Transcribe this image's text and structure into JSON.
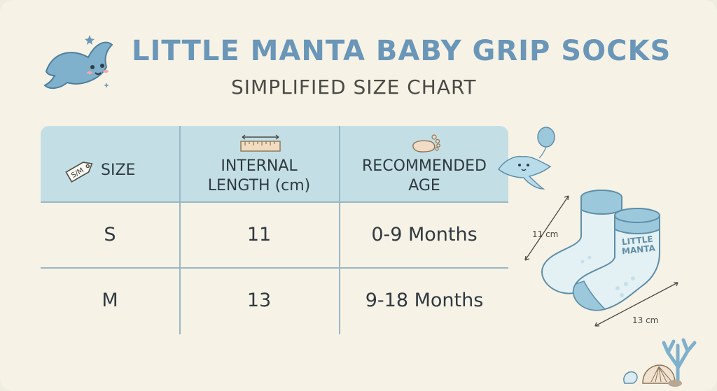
{
  "header": {
    "title": "LITTLE MANTA BABY GRIP SOCKS",
    "subtitle": "SIMPLIFIED SIZE CHART"
  },
  "table": {
    "columns": [
      {
        "label": "SIZE",
        "icon": "size-tag-icon",
        "tag_text": "S/M"
      },
      {
        "label_line1": "INTERNAL",
        "label_line2": "LENGTH (cm)",
        "icon": "ruler-icon"
      },
      {
        "label_line1": "RECOMMENDED",
        "label_line2": "AGE",
        "icon": "baby-foot-icon"
      }
    ],
    "rows": [
      {
        "size": "S",
        "length": "11",
        "age": "0-9 Months"
      },
      {
        "size": "M",
        "length": "13",
        "age": "9-18 Months"
      }
    ]
  },
  "illustration": {
    "sock_label_line1": "LITTLE",
    "sock_label_line2": "MANTA",
    "dim_small": "11 cm",
    "dim_large": "13 cm"
  },
  "colors": {
    "accent": "#6a96b8",
    "header_fill": "#c3dfe5",
    "background": "#f6f2e6"
  }
}
